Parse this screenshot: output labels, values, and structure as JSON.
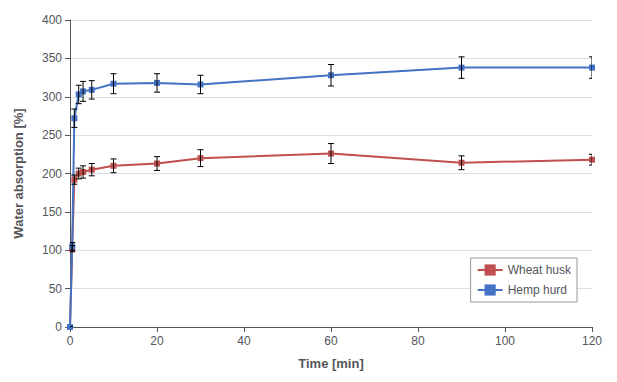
{
  "chart_data": {
    "type": "line",
    "xlabel": "Time [min]",
    "ylabel": "Water absorption [%]",
    "xlim": [
      0,
      120
    ],
    "ylim": [
      0,
      400
    ],
    "xticks": [
      0,
      20,
      40,
      60,
      80,
      100,
      120
    ],
    "yticks": [
      0,
      50,
      100,
      150,
      200,
      250,
      300,
      350,
      400
    ],
    "grid": true,
    "legend": "lower right",
    "marker": "square",
    "series": [
      {
        "name": "Wheat husk",
        "color": "#c0504d",
        "x": [
          0,
          0.5,
          1,
          2,
          3,
          5,
          10,
          20,
          30,
          60,
          90,
          120
        ],
        "values": [
          0,
          102,
          192,
          200,
          202,
          205,
          210,
          213,
          220,
          226,
          214,
          218
        ],
        "errors": [
          0,
          4,
          6,
          7,
          8,
          8,
          9,
          9,
          11,
          13,
          9,
          7
        ]
      },
      {
        "name": "Hemp hurd",
        "color": "#4472c4",
        "x": [
          0,
          0.5,
          1,
          2,
          3,
          5,
          10,
          20,
          30,
          60,
          90,
          120
        ],
        "values": [
          0,
          105,
          272,
          303,
          307,
          309,
          317,
          318,
          316,
          328,
          338,
          338
        ],
        "errors": [
          0,
          5,
          12,
          12,
          13,
          12,
          13,
          12,
          12,
          14,
          14,
          14
        ]
      }
    ]
  }
}
